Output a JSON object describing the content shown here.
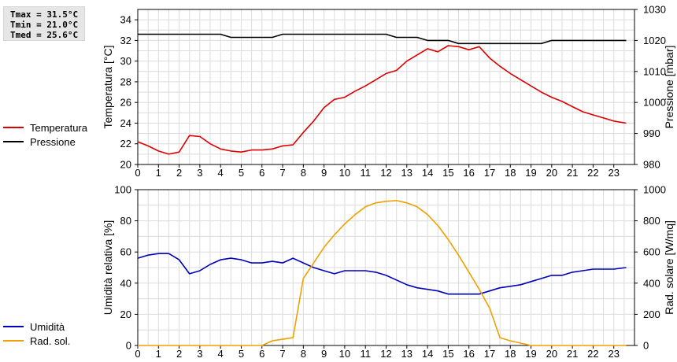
{
  "stats": {
    "tmax": "Tmax = 31.5°C",
    "tmin": "Tmin = 21.0°C",
    "tmed": "Tmed = 25.6°C"
  },
  "legend_top": [
    {
      "label": "Temperatura",
      "color": "#dd0000"
    },
    {
      "label": "Pressione",
      "color": "#000000"
    }
  ],
  "legend_bottom": [
    {
      "label": "Umidità",
      "color": "#0000bb"
    },
    {
      "label": "Rad. sol.",
      "color": "#f0a000"
    }
  ],
  "chart_data": [
    {
      "type": "line",
      "xlim": [
        0,
        24
      ],
      "x_ticks": [
        0,
        1,
        2,
        3,
        4,
        5,
        6,
        7,
        8,
        9,
        10,
        11,
        12,
        13,
        14,
        15,
        16,
        17,
        18,
        19,
        20,
        21,
        22,
        23
      ],
      "ylabel": "Temperatura [°C]",
      "ylim": [
        20,
        35
      ],
      "y_ticks": [
        20,
        22,
        24,
        26,
        28,
        30,
        32,
        34
      ],
      "y2label": "Pressione [mbar]",
      "y2lim": [
        980,
        1030
      ],
      "y2_ticks": [
        980,
        990,
        1000,
        1010,
        1020,
        1030
      ],
      "grid": true,
      "series": [
        {
          "name": "Temperatura",
          "color": "#dd0000",
          "axis": "left",
          "x": [
            0,
            0.5,
            1,
            1.5,
            2,
            2.5,
            3,
            3.5,
            4,
            4.5,
            5,
            5.5,
            6,
            6.5,
            7,
            7.5,
            8,
            8.5,
            9,
            9.5,
            10,
            10.5,
            11,
            11.5,
            12,
            12.5,
            13,
            13.5,
            14,
            14.5,
            15,
            15.5,
            16,
            16.5,
            17,
            17.5,
            18,
            18.5,
            19,
            19.5,
            20,
            20.5,
            21,
            21.5,
            22,
            22.5,
            23,
            23.6
          ],
          "values": [
            22.2,
            21.8,
            21.3,
            21.0,
            21.2,
            22.8,
            22.7,
            22.0,
            21.5,
            21.3,
            21.2,
            21.4,
            21.4,
            21.5,
            21.8,
            21.9,
            23.1,
            24.2,
            25.5,
            26.3,
            26.5,
            27.1,
            27.6,
            28.2,
            28.8,
            29.1,
            30.0,
            30.6,
            31.2,
            30.9,
            31.5,
            31.4,
            31.1,
            31.4,
            30.3,
            29.5,
            28.8,
            28.2,
            27.6,
            27.0,
            26.5,
            26.1,
            25.6,
            25.1,
            24.8,
            24.5,
            24.2,
            24.0
          ]
        },
        {
          "name": "Pressione",
          "color": "#000000",
          "axis": "right",
          "x": [
            0,
            4,
            4.5,
            6.5,
            7,
            12,
            12.5,
            13.5,
            14,
            15,
            15.5,
            19.5,
            20,
            23.6
          ],
          "values": [
            1022,
            1022,
            1021,
            1021,
            1022,
            1022,
            1021,
            1021,
            1020,
            1020,
            1019,
            1019,
            1020,
            1020
          ]
        }
      ]
    },
    {
      "type": "line",
      "xlim": [
        0,
        24
      ],
      "x_ticks": [
        0,
        1,
        2,
        3,
        4,
        5,
        6,
        7,
        8,
        9,
        10,
        11,
        12,
        13,
        14,
        15,
        16,
        17,
        18,
        19,
        20,
        21,
        22,
        23
      ],
      "ylabel": "Umidità relativa [%]",
      "ylim": [
        0,
        100
      ],
      "y_ticks": [
        0,
        20,
        40,
        60,
        80,
        100
      ],
      "y2label": "Rad. solare [W/mq]",
      "y2lim": [
        0,
        1000
      ],
      "y2_ticks": [
        0,
        200,
        400,
        600,
        800,
        1000
      ],
      "grid": true,
      "series": [
        {
          "name": "Umidità",
          "color": "#0000bb",
          "axis": "left",
          "x": [
            0,
            0.5,
            1,
            1.5,
            2,
            2.5,
            3,
            3.5,
            4,
            4.5,
            5,
            5.5,
            6,
            6.5,
            7,
            7.5,
            8,
            8.5,
            9,
            9.5,
            10,
            10.5,
            11,
            11.5,
            12,
            12.5,
            13,
            13.5,
            14,
            14.5,
            15,
            15.5,
            16,
            16.5,
            17,
            17.5,
            18,
            18.5,
            19,
            19.5,
            20,
            20.5,
            21,
            21.5,
            22,
            22.5,
            23,
            23.6
          ],
          "values": [
            56,
            58,
            59,
            59,
            55,
            46,
            48,
            52,
            55,
            56,
            55,
            53,
            53,
            54,
            53,
            56,
            53,
            50,
            48,
            46,
            48,
            48,
            48,
            47,
            45,
            42,
            39,
            37,
            36,
            35,
            33,
            33,
            33,
            33,
            35,
            37,
            38,
            39,
            41,
            43,
            45,
            45,
            47,
            48,
            49,
            49,
            49,
            50
          ]
        },
        {
          "name": "Rad. sol.",
          "color": "#f0a000",
          "axis": "right",
          "x": [
            0,
            6,
            6.5,
            7,
            7.5,
            8,
            8.5,
            9,
            9.5,
            10,
            10.5,
            11,
            11.5,
            12,
            12.5,
            13,
            13.5,
            14,
            14.5,
            15,
            15.5,
            16,
            16.5,
            17,
            17.5,
            18,
            18.5,
            19,
            23.6
          ],
          "values": [
            0,
            0,
            30,
            40,
            50,
            430,
            530,
            630,
            710,
            780,
            840,
            890,
            915,
            925,
            930,
            915,
            890,
            840,
            770,
            680,
            580,
            470,
            360,
            240,
            50,
            30,
            15,
            0,
            0
          ]
        }
      ]
    }
  ]
}
